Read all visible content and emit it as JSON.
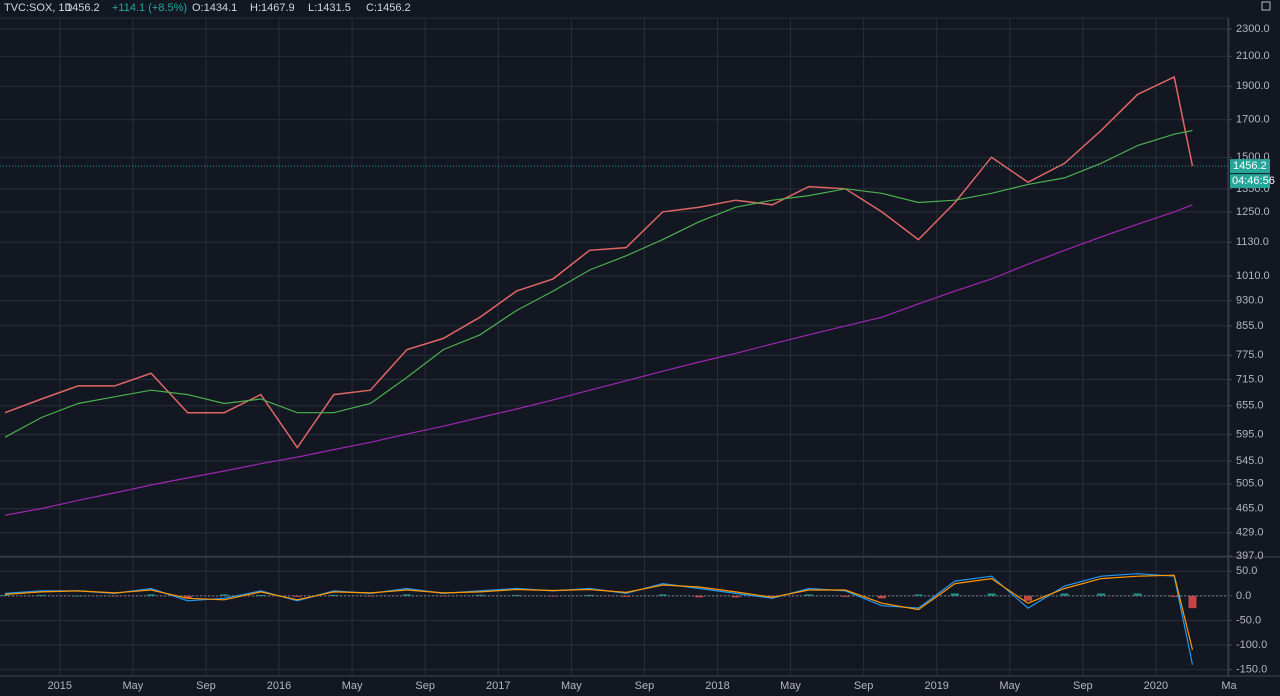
{
  "header": {
    "symbol": "TVC:SOX, 1D",
    "last": "1456.2",
    "change": "+114.1 (+8.5%)",
    "ohlc": [
      "O:1434.1",
      "H:1467.9",
      "L:1431.5",
      "C:1456.2"
    ],
    "countdown": "04:46:56"
  },
  "chart_data": [
    {
      "type": "line",
      "log_scale": true,
      "grid": true,
      "x": [
        "2014-10",
        "2014-12",
        "2015-02",
        "2015-04",
        "2015-06",
        "2015-08",
        "2015-10",
        "2015-12",
        "2016-02",
        "2016-04",
        "2016-06",
        "2016-08",
        "2016-10",
        "2016-12",
        "2017-02",
        "2017-04",
        "2017-06",
        "2017-08",
        "2017-10",
        "2017-12",
        "2018-02",
        "2018-04",
        "2018-06",
        "2018-08",
        "2018-10",
        "2018-12",
        "2019-02",
        "2019-04",
        "2019-06",
        "2019-08",
        "2019-10",
        "2019-12",
        "2020-02",
        "2020-03"
      ],
      "xlim": [
        "2014-10",
        "2020-05"
      ],
      "ylim": [
        397,
        2386
      ],
      "yticks": [
        {
          "value": 397,
          "label": "397.0"
        },
        {
          "value": 429,
          "label": "429.0"
        },
        {
          "value": 465,
          "label": "465.0"
        },
        {
          "value": 505,
          "label": "505.0"
        },
        {
          "value": 545,
          "label": "545.0"
        },
        {
          "value": 595,
          "label": "595.0"
        },
        {
          "value": 655,
          "label": "655.0"
        },
        {
          "value": 715,
          "label": "715.0"
        },
        {
          "value": 775,
          "label": "775.0"
        },
        {
          "value": 855,
          "label": "855.0"
        },
        {
          "value": 930,
          "label": "930.0"
        },
        {
          "value": 1010,
          "label": "1010.0"
        },
        {
          "value": 1130,
          "label": "1130.0"
        },
        {
          "value": 1250,
          "label": "1250.0"
        },
        {
          "value": 1350,
          "label": "1350.0"
        },
        {
          "value": 1500,
          "label": "1500.0"
        },
        {
          "value": 1700,
          "label": "1700.0"
        },
        {
          "value": 1900,
          "label": "1900.0"
        },
        {
          "value": 2100,
          "label": "2100.0"
        },
        {
          "value": 2300,
          "label": "2300.0"
        }
      ],
      "series": [
        {
          "color": "#e06666",
          "values": [
            640,
            670,
            700,
            700,
            730,
            640,
            640,
            680,
            570,
            680,
            690,
            790,
            820,
            880,
            960,
            1000,
            1100,
            1110,
            1250,
            1270,
            1300,
            1280,
            1360,
            1350,
            1250,
            1140,
            1290,
            1500,
            1380,
            1470,
            1640,
            1850,
            1960,
            1456.2
          ]
        },
        {
          "color": "#4caf50",
          "values": [
            590,
            630,
            660,
            675,
            690,
            680,
            660,
            670,
            640,
            640,
            660,
            720,
            790,
            830,
            900,
            960,
            1030,
            1080,
            1140,
            1210,
            1270,
            1300,
            1320,
            1350,
            1330,
            1290,
            1300,
            1330,
            1370,
            1400,
            1470,
            1560,
            1620,
            1640
          ]
        },
        {
          "color": "#9c27b0",
          "values": [
            455,
            465,
            478,
            490,
            503,
            515,
            527,
            540,
            552,
            566,
            580,
            596,
            612,
            630,
            648,
            668,
            690,
            712,
            735,
            758,
            780,
            805,
            830,
            855,
            880,
            920,
            960,
            1000,
            1050,
            1100,
            1150,
            1200,
            1250,
            1280
          ]
        }
      ]
    },
    {
      "type": "line",
      "grid": true,
      "x": [
        "2014-10",
        "2014-12",
        "2015-02",
        "2015-04",
        "2015-06",
        "2015-08",
        "2015-10",
        "2015-12",
        "2016-02",
        "2016-04",
        "2016-06",
        "2016-08",
        "2016-10",
        "2016-12",
        "2017-02",
        "2017-04",
        "2017-06",
        "2017-08",
        "2017-10",
        "2017-12",
        "2018-02",
        "2018-04",
        "2018-06",
        "2018-08",
        "2018-10",
        "2018-12",
        "2019-02",
        "2019-04",
        "2019-06",
        "2019-08",
        "2019-10",
        "2019-12",
        "2020-02",
        "2020-03"
      ],
      "xlim": [
        "2014-10",
        "2020-05"
      ],
      "xticks": [
        {
          "value": "2015-01",
          "label": "2015"
        },
        {
          "value": "2015-05",
          "label": "May"
        },
        {
          "value": "2015-09",
          "label": "Sep"
        },
        {
          "value": "2016-01",
          "label": "2016"
        },
        {
          "value": "2016-05",
          "label": "May"
        },
        {
          "value": "2016-09",
          "label": "Sep"
        },
        {
          "value": "2017-01",
          "label": "2017"
        },
        {
          "value": "2017-05",
          "label": "May"
        },
        {
          "value": "2017-09",
          "label": "Sep"
        },
        {
          "value": "2018-01",
          "label": "2018"
        },
        {
          "value": "2018-05",
          "label": "May"
        },
        {
          "value": "2018-09",
          "label": "Sep"
        },
        {
          "value": "2019-01",
          "label": "2019"
        },
        {
          "value": "2019-05",
          "label": "May"
        },
        {
          "value": "2019-09",
          "label": "Sep"
        },
        {
          "value": "2020-01",
          "label": "2020"
        },
        {
          "value": "2020-05",
          "label": "Ma"
        }
      ],
      "ylim": [
        -163,
        77
      ],
      "yticks": [
        {
          "value": 50,
          "label": "50.0"
        },
        {
          "value": 0,
          "label": "0.0"
        },
        {
          "value": -50,
          "label": "-50.0"
        },
        {
          "value": -100,
          "label": "-100.0"
        },
        {
          "value": -150,
          "label": "-150.0"
        }
      ],
      "series": [
        {
          "kind": "bar",
          "color": "#26a69a",
          "negative_color": "#ef5350",
          "values": [
            2,
            2,
            0,
            -1,
            3,
            -5,
            3,
            2,
            -2,
            2,
            -1,
            3,
            -1,
            2,
            2,
            -1,
            2,
            -2,
            3,
            -3,
            -3,
            -2,
            3,
            -2,
            -5,
            3,
            5,
            5,
            -10,
            5,
            5,
            5,
            -2,
            -25
          ]
        },
        {
          "color": "#2196f3",
          "values": [
            5,
            10,
            10,
            5,
            15,
            -10,
            -5,
            10,
            -10,
            10,
            5,
            15,
            5,
            10,
            15,
            10,
            15,
            5,
            25,
            15,
            5,
            -5,
            15,
            10,
            -20,
            -25,
            30,
            40,
            -25,
            20,
            40,
            45,
            40,
            -140
          ]
        },
        {
          "color": "#ff9800",
          "values": [
            3,
            8,
            10,
            6,
            12,
            -5,
            -8,
            8,
            -8,
            8,
            6,
            12,
            6,
            8,
            13,
            11,
            13,
            7,
            22,
            18,
            8,
            -3,
            12,
            12,
            -15,
            -28,
            25,
            35,
            -15,
            15,
            35,
            40,
            42,
            -110
          ]
        }
      ]
    }
  ]
}
